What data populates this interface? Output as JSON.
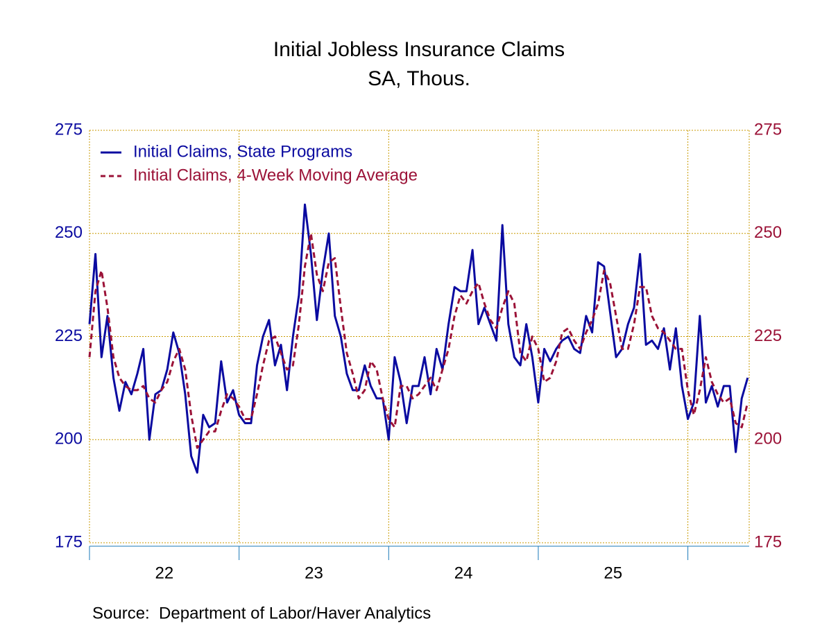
{
  "chart_data": {
    "type": "line",
    "title": "Initial Jobless Insurance Claims",
    "subtitle": "SA, Thous.",
    "source": "Source:  Department of Labor/Haver Analytics",
    "x": [
      22,
      22.04,
      22.08,
      22.12,
      22.16,
      22.2,
      22.24,
      22.28,
      22.32,
      22.36,
      22.4,
      22.44,
      22.48,
      22.52,
      22.56,
      22.6,
      22.64,
      22.68,
      22.72,
      22.76,
      22.8,
      22.84,
      22.88,
      22.92,
      22.96,
      23,
      23.04,
      23.08,
      23.12,
      23.16,
      23.2,
      23.24,
      23.28,
      23.32,
      23.36,
      23.4,
      23.44,
      23.48,
      23.52,
      23.56,
      23.6,
      23.64,
      23.68,
      23.72,
      23.76,
      23.8,
      23.84,
      23.88,
      23.92,
      23.96,
      24,
      24.04,
      24.08,
      24.12,
      24.16,
      24.2,
      24.24,
      24.28,
      24.32,
      24.36,
      24.4,
      24.44,
      24.48,
      24.52,
      24.56,
      24.6,
      24.64,
      24.68,
      24.72,
      24.76,
      24.8,
      24.84,
      24.88,
      24.92,
      24.96,
      25,
      25.04,
      25.08,
      25.12,
      25.16,
      25.2,
      25.24,
      25.28,
      25.32,
      25.36,
      25.4,
      25.44,
      25.48,
      25.52,
      25.56,
      25.6,
      25.64,
      25.68,
      25.72,
      25.76,
      25.8,
      25.84,
      25.88,
      25.92,
      25.96,
      26,
      26.04,
      26.08,
      26.12,
      26.16,
      26.2,
      26.24,
      26.28,
      26.32,
      26.36,
      26.4
    ],
    "series": [
      {
        "name": "Initial Claims, State Programs",
        "color": "#0a0aa0",
        "dash": false,
        "axis": "y",
        "values": [
          228,
          245,
          220,
          230,
          215,
          207,
          214,
          211,
          216,
          222,
          200,
          211,
          212,
          217,
          226,
          221,
          211,
          196,
          192,
          206,
          203,
          204,
          219,
          209,
          212,
          206,
          204,
          204,
          218,
          225,
          229,
          218,
          223,
          212,
          225,
          235,
          257,
          245,
          229,
          241,
          250,
          230,
          225,
          216,
          212,
          212,
          218,
          213,
          210,
          210,
          200,
          220,
          214,
          204,
          213,
          213,
          220,
          211,
          222,
          217,
          228,
          237,
          236,
          236,
          246,
          228,
          232,
          228,
          224,
          252,
          228,
          220,
          218,
          228,
          220,
          209,
          222,
          219,
          222,
          224,
          225,
          222,
          221,
          230,
          226,
          243,
          242,
          231,
          220,
          222,
          228,
          232,
          245,
          223,
          224,
          222,
          227,
          217,
          227,
          213,
          205,
          209,
          230,
          209,
          213,
          208,
          213,
          213,
          197,
          210,
          215
        ]
      },
      {
        "name": "Initial Claims, 4-Week Moving Average",
        "color": "#9b1237",
        "dash": true,
        "axis": "y2",
        "values": [
          220,
          236,
          241,
          232,
          220,
          215,
          213,
          212,
          212,
          213,
          210,
          209,
          212,
          214,
          219,
          222,
          217,
          206,
          198,
          200,
          202,
          202,
          207,
          211,
          210,
          208,
          205,
          205,
          211,
          218,
          224,
          225,
          221,
          217,
          218,
          228,
          242,
          250,
          240,
          236,
          243,
          244,
          232,
          221,
          216,
          210,
          212,
          219,
          217,
          210,
          205,
          203,
          213,
          213,
          210,
          211,
          213,
          215,
          212,
          217,
          222,
          230,
          235,
          233,
          236,
          238,
          233,
          229,
          227,
          232,
          236,
          233,
          221,
          219,
          225,
          222,
          214,
          215,
          219,
          226,
          227,
          224,
          222,
          226,
          229,
          233,
          241,
          238,
          230,
          222,
          222,
          228,
          237,
          237,
          230,
          227,
          226,
          224,
          222,
          222,
          212,
          206,
          212,
          220,
          214,
          211,
          209,
          210,
          204,
          203,
          209
        ]
      }
    ],
    "xlim": [
      22,
      26.41
    ],
    "xticks": [
      22,
      23,
      24,
      25,
      26
    ],
    "x_labels": [
      {
        "value": 22.5,
        "label": "22"
      },
      {
        "value": 23.5,
        "label": "23"
      },
      {
        "value": 24.5,
        "label": "24"
      },
      {
        "value": 25.5,
        "label": "25"
      }
    ],
    "ylim": [
      175,
      275
    ],
    "yticks": [
      175,
      200,
      225,
      250,
      275
    ],
    "y2lim": [
      175,
      275
    ],
    "y2ticks": [
      175,
      200,
      225,
      250,
      275
    ],
    "grid": true
  }
}
